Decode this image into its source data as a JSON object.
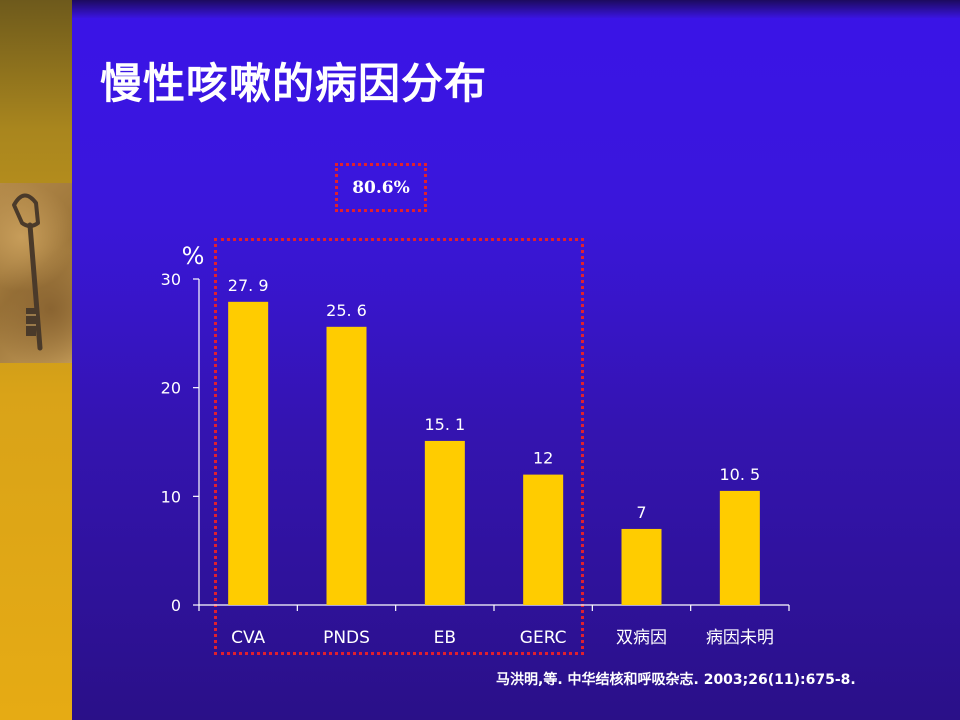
{
  "slide": {
    "title": "慢性咳嗽的病因分布",
    "callout": "80.6%",
    "citation": "马洪明,等. 中华结核和呼吸杂志. 2003;26(11):675-8."
  },
  "colors": {
    "bar": "#ffcc00",
    "axis": "#ffffff",
    "highlight": "#e0202e",
    "background": "#3a16da"
  },
  "chart_data": {
    "type": "bar",
    "title": "",
    "xlabel": "",
    "ylabel": "%",
    "categories": [
      "CVA",
      "PNDS",
      "EB",
      "GERC",
      "双病因",
      "病因未明"
    ],
    "values": [
      27.9,
      25.6,
      15.1,
      12,
      7,
      10.5
    ],
    "value_labels": [
      "27. 9",
      "25. 6",
      "15. 1",
      "12",
      "7",
      "10. 5"
    ],
    "ylim": [
      0,
      30
    ],
    "yticks": [
      0,
      10,
      20,
      30
    ],
    "grid": false,
    "legend": "none"
  }
}
